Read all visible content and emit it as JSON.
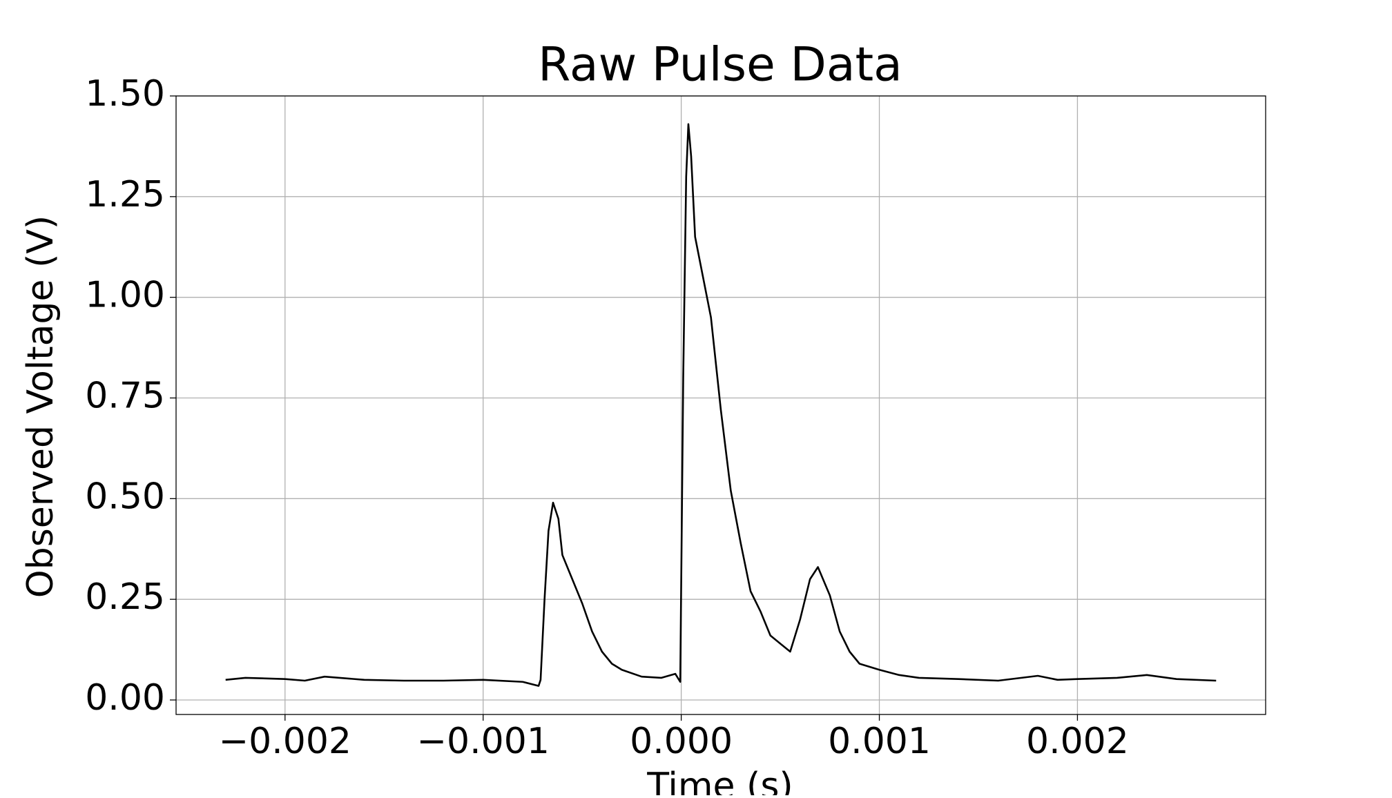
{
  "chart_data": {
    "type": "line",
    "title": "Raw Pulse Data",
    "x_label": "Time (s)",
    "y_label": "Observed Voltage (V)",
    "x": [
      -0.0023,
      -0.0022,
      -0.002,
      -0.0019,
      -0.0018,
      -0.0016,
      -0.0014,
      -0.0012,
      -0.001,
      -0.0008,
      -0.00072,
      -0.00071,
      -0.00069,
      -0.00067,
      -0.000647,
      -0.00062,
      -0.0006,
      -0.00055,
      -0.0005,
      -0.00045,
      -0.0004,
      -0.00035,
      -0.0003,
      -0.0002,
      -0.0001,
      -3e-05,
      -5e-06,
      1e-05,
      2.5e-05,
      3.6e-05,
      5e-05,
      7e-05,
      0.00011,
      0.00015,
      0.0002,
      0.00025,
      0.0003,
      0.00035,
      0.0004,
      0.00045,
      0.0005,
      0.00055,
      0.0006,
      0.00065,
      0.00069,
      0.00075,
      0.0008,
      0.00085,
      0.0009,
      0.001,
      0.0011,
      0.0012,
      0.0014,
      0.0016,
      0.0018,
      0.0019,
      0.002,
      0.0022,
      0.00235,
      0.0025,
      0.0027
    ],
    "series": [
      {
        "name": "Pulse",
        "color": "#000000",
        "values": [
          0.05,
          0.055,
          0.052,
          0.048,
          0.058,
          0.05,
          0.048,
          0.048,
          0.05,
          0.045,
          0.035,
          0.05,
          0.25,
          0.42,
          0.49,
          0.45,
          0.36,
          0.3,
          0.24,
          0.17,
          0.12,
          0.09,
          0.075,
          0.058,
          0.055,
          0.065,
          0.045,
          0.8,
          1.3,
          1.43,
          1.35,
          1.15,
          1.05,
          0.95,
          0.72,
          0.52,
          0.39,
          0.27,
          0.22,
          0.16,
          0.14,
          0.12,
          0.2,
          0.3,
          0.33,
          0.26,
          0.17,
          0.12,
          0.09,
          0.075,
          0.062,
          0.055,
          0.052,
          0.048,
          0.06,
          0.05,
          0.052,
          0.055,
          0.062,
          0.052,
          0.048
        ]
      }
    ],
    "xlim": [
      -0.00255,
      0.00295
    ],
    "ylim": [
      -0.036,
      1.5
    ],
    "xticks": [
      {
        "value": -0.002,
        "label": "−0.002"
      },
      {
        "value": -0.001,
        "label": "−0.001"
      },
      {
        "value": 0,
        "label": "0.000"
      },
      0.001,
      0.002
    ],
    "yticks": [
      {
        "value": 0,
        "label": "0.00"
      },
      0.25,
      {
        "value": 0.5,
        "label": "0.50"
      },
      0.75,
      {
        "value": 1,
        "label": "1.00"
      },
      1.25,
      {
        "value": 1.5,
        "label": "1.50"
      }
    ],
    "grid": true
  }
}
